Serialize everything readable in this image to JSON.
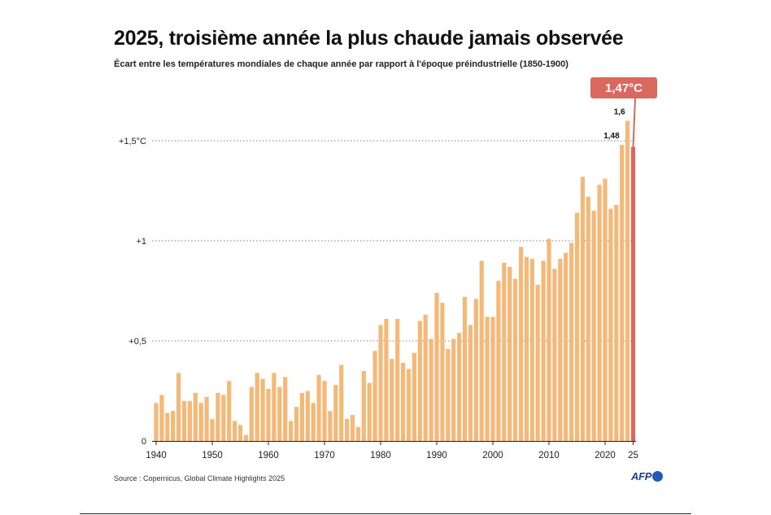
{
  "header": {
    "title": "2025, troisième année la plus chaude jamais observée",
    "subtitle": "Écart entre les températures mondiales de chaque année par rapport à l'époque préindustrielle (1850-1900)"
  },
  "footer": {
    "source": "Source : Copernicus, Global Climate Highlights 2025",
    "logo_text": "AFP"
  },
  "colors": {
    "bar": "#f4b978",
    "highlight": "#d9695f",
    "grid": "#555555",
    "axis": "#222222"
  },
  "chart_data": {
    "type": "bar",
    "title": "2025, troisième année la plus chaude jamais observée",
    "subtitle": "Écart entre les températures mondiales de chaque année par rapport à l'époque préindustrielle (1850-1900)",
    "xlabel": "",
    "ylabel": "",
    "ylim": [
      0,
      1.6
    ],
    "grid": true,
    "x": [
      1940,
      1941,
      1942,
      1943,
      1944,
      1945,
      1946,
      1947,
      1948,
      1949,
      1950,
      1951,
      1952,
      1953,
      1954,
      1955,
      1956,
      1957,
      1958,
      1959,
      1960,
      1961,
      1962,
      1963,
      1964,
      1965,
      1966,
      1967,
      1968,
      1969,
      1970,
      1971,
      1972,
      1973,
      1974,
      1975,
      1976,
      1977,
      1978,
      1979,
      1980,
      1981,
      1982,
      1983,
      1984,
      1985,
      1986,
      1987,
      1988,
      1989,
      1990,
      1991,
      1992,
      1993,
      1994,
      1995,
      1996,
      1997,
      1998,
      1999,
      2000,
      2001,
      2002,
      2003,
      2004,
      2005,
      2006,
      2007,
      2008,
      2009,
      2010,
      2011,
      2012,
      2013,
      2014,
      2015,
      2016,
      2017,
      2018,
      2019,
      2020,
      2021,
      2022,
      2023,
      2024,
      2025
    ],
    "values": [
      0.19,
      0.23,
      0.14,
      0.15,
      0.34,
      0.2,
      0.2,
      0.24,
      0.19,
      0.22,
      0.11,
      0.24,
      0.23,
      0.3,
      0.1,
      0.08,
      0.03,
      0.27,
      0.34,
      0.31,
      0.26,
      0.34,
      0.27,
      0.32,
      0.1,
      0.17,
      0.24,
      0.25,
      0.19,
      0.33,
      0.3,
      0.15,
      0.28,
      0.38,
      0.11,
      0.13,
      0.07,
      0.35,
      0.29,
      0.45,
      0.58,
      0.61,
      0.41,
      0.61,
      0.39,
      0.36,
      0.44,
      0.6,
      0.63,
      0.51,
      0.74,
      0.69,
      0.46,
      0.51,
      0.54,
      0.72,
      0.58,
      0.71,
      0.9,
      0.62,
      0.62,
      0.8,
      0.89,
      0.87,
      0.81,
      0.97,
      0.92,
      0.91,
      0.78,
      0.9,
      1.01,
      0.86,
      0.91,
      0.94,
      0.99,
      1.14,
      1.32,
      1.22,
      1.15,
      1.28,
      1.31,
      1.16,
      1.18,
      1.48,
      1.6,
      1.47
    ],
    "x_ticks": [
      {
        "year": 1940,
        "label": "1940"
      },
      {
        "year": 1950,
        "label": "1950"
      },
      {
        "year": 1960,
        "label": "1960"
      },
      {
        "year": 1970,
        "label": "1970"
      },
      {
        "year": 1980,
        "label": "1980"
      },
      {
        "year": 1990,
        "label": "1990"
      },
      {
        "year": 2000,
        "label": "2000"
      },
      {
        "year": 2010,
        "label": "2010"
      },
      {
        "year": 2020,
        "label": "2020"
      },
      {
        "year": 2025,
        "label": "25"
      }
    ],
    "y_ticks": [
      {
        "value": 0,
        "label": "0"
      },
      {
        "value": 0.5,
        "label": "+0,5"
      },
      {
        "value": 1,
        "label": "+1"
      },
      {
        "value": 1.5,
        "label": "+1,5°C"
      }
    ],
    "annotations": [
      {
        "year": 2023,
        "value": 1.48,
        "label": "1,48"
      },
      {
        "year": 2024,
        "value": 1.6,
        "label": "1,6"
      }
    ],
    "highlight": {
      "year": 2025,
      "value": 1.47,
      "label": "1,47°C"
    }
  }
}
